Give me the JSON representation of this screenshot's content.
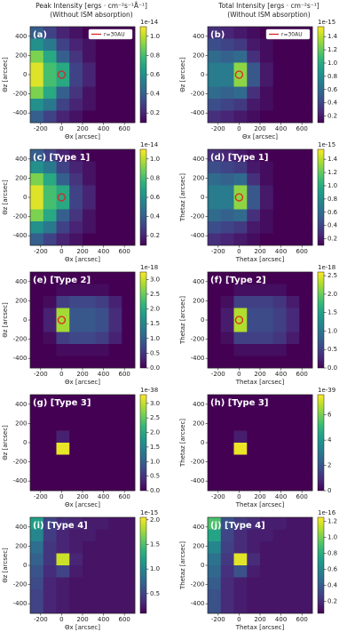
{
  "chart_data": [
    {
      "type": "heatmap",
      "title": "Peak Intensity [ergs · cm⁻²s⁻¹Å⁻¹]",
      "subtitle": "(Without ISM absorption)",
      "panel_label": "(a)",
      "legend": "r=30AU",
      "marker": {
        "x": 0,
        "y": 0,
        "color": "#d62728"
      },
      "xlabel": "Θx [arcsec]",
      "ylabel": "Θz [arcsec]",
      "xlim": [
        -300,
        700
      ],
      "ylim": [
        -500,
        500
      ],
      "xticks": [
        -200,
        0,
        200,
        400,
        600
      ],
      "yticks": [
        -400,
        -200,
        0,
        200,
        400
      ],
      "colormap": "viridis",
      "clim": [
        0.1,
        1.1
      ],
      "cticks": [
        0.2,
        0.4,
        0.6,
        0.8,
        {
          "value": 1,
          "label": "1.0"
        }
      ],
      "cbar_exponent": "1e-14",
      "z": [
        [
          0.4,
          0.3,
          0.2,
          0.15,
          0.1,
          0.1,
          0.1,
          0.1
        ],
        [
          0.6,
          0.5,
          0.3,
          0.2,
          0.15,
          0.1,
          0.1,
          0.1
        ],
        [
          0.9,
          0.7,
          0.4,
          0.25,
          0.15,
          0.1,
          0.1,
          0.1
        ],
        [
          1.05,
          0.8,
          0.7,
          0.3,
          0.2,
          0.1,
          0.1,
          0.1
        ],
        [
          1.05,
          0.8,
          0.7,
          0.3,
          0.2,
          0.1,
          0.1,
          0.1
        ],
        [
          0.9,
          0.7,
          0.4,
          0.25,
          0.15,
          0.1,
          0.1,
          0.1
        ],
        [
          0.6,
          0.5,
          0.3,
          0.2,
          0.15,
          0.1,
          0.1,
          0.1
        ],
        [
          0.4,
          0.3,
          0.2,
          0.15,
          0.1,
          0.1,
          0.1,
          0.1
        ]
      ]
    },
    {
      "type": "heatmap",
      "title": "Total Intensity [ergs · cm⁻²s⁻¹]",
      "subtitle": "(Without ISM absorption)",
      "panel_label": "(b)",
      "legend": "r=30AU",
      "marker": {
        "x": 0,
        "y": 0,
        "color": "#d62728"
      },
      "xlabel": "Θx [arcsec]",
      "ylabel": "Θz [arcsec]",
      "xlim": [
        -300,
        700
      ],
      "ylim": [
        -500,
        500
      ],
      "xticks": [
        -200,
        0,
        200,
        400,
        600
      ],
      "yticks": [
        -400,
        -200,
        0,
        200,
        400
      ],
      "colormap": "viridis",
      "clim": [
        0.1,
        1.55
      ],
      "cticks": [
        0.2,
        0.4,
        0.6,
        0.8,
        {
          "value": 1,
          "label": "1.0"
        },
        1.2,
        1.4
      ],
      "cbar_exponent": "1e-15",
      "z": [
        [
          0.3,
          0.25,
          0.2,
          0.15,
          0.1,
          0.1,
          0.1,
          0.1
        ],
        [
          0.45,
          0.4,
          0.35,
          0.2,
          0.15,
          0.1,
          0.1,
          0.1
        ],
        [
          0.6,
          0.55,
          0.6,
          0.3,
          0.15,
          0.1,
          0.1,
          0.1
        ],
        [
          0.7,
          0.7,
          1.3,
          0.5,
          0.2,
          0.1,
          0.1,
          0.1
        ],
        [
          0.7,
          0.7,
          1.3,
          0.5,
          0.2,
          0.1,
          0.1,
          0.1
        ],
        [
          0.6,
          0.55,
          0.6,
          0.3,
          0.15,
          0.1,
          0.1,
          0.1
        ],
        [
          0.45,
          0.4,
          0.35,
          0.2,
          0.15,
          0.1,
          0.1,
          0.1
        ],
        [
          0.3,
          0.25,
          0.2,
          0.15,
          0.1,
          0.1,
          0.1,
          0.1
        ]
      ]
    },
    {
      "type": "heatmap",
      "panel_label": "(c) [Type 1]",
      "marker": {
        "x": 0,
        "y": 0,
        "color": "#d62728"
      },
      "xlabel": "Θx [arcsec]",
      "ylabel": "Θz [arcsec]",
      "xlim": [
        -300,
        700
      ],
      "ylim": [
        -500,
        500
      ],
      "xticks": [
        -200,
        0,
        200,
        400,
        600
      ],
      "yticks": [
        -400,
        -200,
        0,
        200,
        400
      ],
      "colormap": "viridis",
      "clim": [
        0.1,
        1.1
      ],
      "cticks": [
        0.2,
        0.4,
        0.6,
        0.8,
        {
          "value": 1,
          "label": "1.0"
        }
      ],
      "cbar_exponent": "1e-14",
      "z": [
        [
          0.4,
          0.3,
          0.2,
          0.15,
          0.1,
          0.1,
          0.1,
          0.1
        ],
        [
          0.6,
          0.5,
          0.3,
          0.2,
          0.15,
          0.1,
          0.1,
          0.1
        ],
        [
          0.9,
          0.7,
          0.4,
          0.25,
          0.15,
          0.1,
          0.1,
          0.1
        ],
        [
          1.05,
          0.8,
          0.7,
          0.3,
          0.2,
          0.1,
          0.1,
          0.1
        ],
        [
          1.05,
          0.8,
          0.7,
          0.3,
          0.2,
          0.1,
          0.1,
          0.1
        ],
        [
          0.9,
          0.7,
          0.4,
          0.25,
          0.15,
          0.1,
          0.1,
          0.1
        ],
        [
          0.6,
          0.5,
          0.3,
          0.2,
          0.15,
          0.1,
          0.1,
          0.1
        ],
        [
          0.4,
          0.3,
          0.2,
          0.15,
          0.1,
          0.1,
          0.1,
          0.1
        ]
      ]
    },
    {
      "type": "heatmap",
      "panel_label": "(d) [Type 1]",
      "marker": {
        "x": 0,
        "y": 0,
        "color": "#d62728"
      },
      "xlabel": "Thetax [arcsec]",
      "ylabel": "Thetaz [arcsec]",
      "xlim": [
        -300,
        700
      ],
      "ylim": [
        -500,
        500
      ],
      "xticks": [
        -200,
        0,
        200,
        400,
        600
      ],
      "yticks": [
        -400,
        -200,
        0,
        200,
        400
      ],
      "colormap": "viridis",
      "clim": [
        0.1,
        1.55
      ],
      "cticks": [
        0.2,
        0.4,
        0.6,
        0.8,
        {
          "value": 1,
          "label": "1.0"
        },
        1.2,
        1.4
      ],
      "cbar_exponent": "1e-15",
      "z": [
        [
          0.3,
          0.25,
          0.2,
          0.15,
          0.1,
          0.1,
          0.1,
          0.1
        ],
        [
          0.45,
          0.4,
          0.35,
          0.2,
          0.15,
          0.1,
          0.1,
          0.1
        ],
        [
          0.6,
          0.55,
          0.6,
          0.3,
          0.15,
          0.1,
          0.1,
          0.1
        ],
        [
          0.7,
          0.7,
          1.3,
          0.5,
          0.2,
          0.1,
          0.1,
          0.1
        ],
        [
          0.7,
          0.7,
          1.3,
          0.5,
          0.2,
          0.1,
          0.1,
          0.1
        ],
        [
          0.6,
          0.55,
          0.6,
          0.3,
          0.15,
          0.1,
          0.1,
          0.1
        ],
        [
          0.45,
          0.4,
          0.35,
          0.2,
          0.15,
          0.1,
          0.1,
          0.1
        ],
        [
          0.3,
          0.25,
          0.2,
          0.15,
          0.1,
          0.1,
          0.1,
          0.1
        ]
      ]
    },
    {
      "type": "heatmap",
      "panel_label": "(e) [Type 2]",
      "marker": {
        "x": 0,
        "y": 0,
        "color": "#d62728"
      },
      "xlabel": "Θx [arcsec]",
      "ylabel": "Θz [arcsec]",
      "xlim": [
        -300,
        700
      ],
      "ylim": [
        -500,
        500
      ],
      "xticks": [
        -200,
        0,
        200,
        400,
        600
      ],
      "yticks": [
        -400,
        -200,
        0,
        200,
        400
      ],
      "colormap": "viridis",
      "clim": [
        0,
        3.25
      ],
      "cticks": [
        {
          "value": 0,
          "label": "0.0"
        },
        0.5,
        {
          "value": 1,
          "label": "1.0"
        },
        1.5,
        {
          "value": 2,
          "label": "2.0"
        },
        2.5,
        {
          "value": 3,
          "label": "3.0"
        }
      ],
      "cbar_exponent": "1e-18",
      "z": [
        [
          0,
          0,
          0,
          0,
          0,
          0,
          0,
          0
        ],
        [
          0,
          0,
          0.1,
          0.1,
          0.1,
          0.1,
          0,
          0
        ],
        [
          0,
          0.1,
          0.6,
          0.7,
          0.7,
          0.6,
          0.3,
          0
        ],
        [
          0,
          0.3,
          2.8,
          0.9,
          0.9,
          0.8,
          0.4,
          0
        ],
        [
          0,
          0.3,
          2.8,
          0.9,
          0.9,
          0.8,
          0.4,
          0
        ],
        [
          0,
          0.1,
          0.6,
          0.7,
          0.7,
          0.6,
          0.3,
          0
        ],
        [
          0,
          0,
          0.1,
          0.1,
          0.1,
          0.1,
          0,
          0
        ],
        [
          0,
          0,
          0,
          0,
          0,
          0,
          0,
          0
        ]
      ]
    },
    {
      "type": "heatmap",
      "panel_label": "(f) [Type 2]",
      "marker": {
        "x": 0,
        "y": 0,
        "color": "#d62728"
      },
      "xlabel": "Thetax [arcsec]",
      "ylabel": "Thetaz [arcsec]",
      "xlim": [
        -300,
        700
      ],
      "ylim": [
        -500,
        500
      ],
      "xticks": [
        -200,
        0,
        200,
        400,
        600
      ],
      "yticks": [
        -400,
        -200,
        0,
        200,
        400
      ],
      "colormap": "viridis",
      "clim": [
        0,
        2.6
      ],
      "cticks": [
        {
          "value": 0,
          "label": "0.0"
        },
        0.5,
        {
          "value": 1,
          "label": "1.0"
        },
        1.5,
        {
          "value": 2,
          "label": "2.0"
        },
        2.5
      ],
      "cbar_exponent": "1e-18",
      "z": [
        [
          0,
          0,
          0,
          0,
          0,
          0,
          0,
          0
        ],
        [
          0,
          0,
          0.1,
          0.1,
          0.1,
          0.1,
          0,
          0
        ],
        [
          0,
          0.1,
          0.5,
          0.5,
          0.5,
          0.4,
          0.2,
          0
        ],
        [
          0,
          0.2,
          2.3,
          0.6,
          0.6,
          0.5,
          0.3,
          0
        ],
        [
          0,
          0.2,
          2.3,
          0.6,
          0.6,
          0.5,
          0.3,
          0
        ],
        [
          0,
          0.1,
          0.5,
          0.5,
          0.5,
          0.4,
          0.2,
          0
        ],
        [
          0,
          0,
          0.1,
          0.1,
          0.1,
          0.1,
          0,
          0
        ],
        [
          0,
          0,
          0,
          0,
          0,
          0,
          0,
          0
        ]
      ]
    },
    {
      "type": "heatmap",
      "panel_label": "(g) [Type 3]",
      "xlabel": "Θx [arcsec]",
      "ylabel": "Θz [arcsec]",
      "xlim": [
        -300,
        700
      ],
      "ylim": [
        -500,
        500
      ],
      "xticks": [
        -200,
        0,
        200,
        400,
        600
      ],
      "yticks": [
        -400,
        -200,
        0,
        200,
        400
      ],
      "colormap": "viridis",
      "clim": [
        0,
        3.3
      ],
      "cticks": [
        {
          "value": 0,
          "label": "0.0"
        },
        0.5,
        {
          "value": 1,
          "label": "1.0"
        },
        1.5,
        {
          "value": 2,
          "label": "2.0"
        },
        2.5,
        {
          "value": 3,
          "label": "3.0"
        }
      ],
      "cbar_exponent": "1e-38",
      "z": [
        [
          0,
          0,
          0,
          0,
          0,
          0,
          0,
          0
        ],
        [
          0,
          0,
          0,
          0,
          0,
          0,
          0,
          0
        ],
        [
          0,
          0,
          0,
          0,
          0,
          0,
          0,
          0
        ],
        [
          0,
          0,
          0.3,
          0,
          0,
          0,
          0,
          0
        ],
        [
          0,
          0,
          3.2,
          0,
          0,
          0,
          0,
          0
        ],
        [
          0,
          0,
          0,
          0,
          0,
          0,
          0,
          0
        ],
        [
          0,
          0,
          0,
          0,
          0,
          0,
          0,
          0
        ],
        [
          0,
          0,
          0,
          0,
          0,
          0,
          0,
          0
        ]
      ]
    },
    {
      "type": "heatmap",
      "panel_label": "(h) [Type 3]",
      "xlabel": "Thetax [arcsec]",
      "ylabel": "Thetaz [arcsec]",
      "xlim": [
        -300,
        700
      ],
      "ylim": [
        -500,
        500
      ],
      "xticks": [
        -200,
        0,
        200,
        400,
        600
      ],
      "yticks": [
        -400,
        -200,
        0,
        200,
        400
      ],
      "colormap": "viridis",
      "clim": [
        0,
        7.6
      ],
      "cticks": [
        0,
        2,
        4,
        6
      ],
      "cbar_exponent": "1e-39",
      "z": [
        [
          0,
          0,
          0,
          0,
          0,
          0,
          0,
          0
        ],
        [
          0,
          0,
          0,
          0,
          0,
          0,
          0,
          0
        ],
        [
          0,
          0,
          0,
          0,
          0,
          0,
          0,
          0
        ],
        [
          0,
          0,
          0.6,
          0,
          0,
          0,
          0,
          0
        ],
        [
          0,
          0,
          7.4,
          0,
          0,
          0,
          0,
          0
        ],
        [
          0,
          0,
          0,
          0,
          0,
          0,
          0,
          0
        ],
        [
          0,
          0,
          0,
          0,
          0,
          0,
          0,
          0
        ],
        [
          0,
          0,
          0,
          0,
          0,
          0,
          0,
          0
        ]
      ]
    },
    {
      "type": "heatmap",
      "panel_label": "(i) [Type 4]",
      "xlabel": "Θx [arcsec]",
      "ylabel": "Θz [arcsec]",
      "xlim": [
        -300,
        700
      ],
      "ylim": [
        -500,
        500
      ],
      "xticks": [
        -200,
        0,
        200,
        400,
        600
      ],
      "yticks": [
        -400,
        -200,
        0,
        200,
        400
      ],
      "colormap": "viridis",
      "clim": [
        0.1,
        2.05
      ],
      "cticks": [
        0.5,
        {
          "value": 1,
          "label": "1.0"
        },
        1.5,
        {
          "value": 2,
          "label": "2.0"
        }
      ],
      "cbar_exponent": "1e-15",
      "z": [
        [
          1.2,
          0.5,
          0.35,
          0.3,
          0.25,
          0.25,
          0.2,
          0.2
        ],
        [
          1.0,
          0.45,
          0.3,
          0.25,
          0.25,
          0.2,
          0.2,
          0.2
        ],
        [
          0.8,
          0.4,
          0.3,
          0.25,
          0.2,
          0.2,
          0.2,
          0.2
        ],
        [
          0.7,
          0.4,
          1.9,
          0.3,
          0.2,
          0.2,
          0.2,
          0.2
        ],
        [
          0.6,
          0.35,
          0.5,
          0.25,
          0.2,
          0.2,
          0.2,
          0.2
        ],
        [
          0.55,
          0.3,
          0.25,
          0.2,
          0.2,
          0.2,
          0.2,
          0.2
        ],
        [
          0.5,
          0.3,
          0.25,
          0.2,
          0.2,
          0.2,
          0.2,
          0.2
        ],
        [
          0.5,
          0.3,
          0.25,
          0.2,
          0.2,
          0.2,
          0.2,
          0.2
        ]
      ]
    },
    {
      "type": "heatmap",
      "panel_label": "(j) [Type 4]",
      "xlabel": "Thetax [arcsec]",
      "ylabel": "Thetaz [arcsec]",
      "xlim": [
        -300,
        700
      ],
      "ylim": [
        -500,
        500
      ],
      "xticks": [
        -200,
        0,
        200,
        400,
        600
      ],
      "yticks": [
        -400,
        -200,
        0,
        200,
        400
      ],
      "colormap": "viridis",
      "clim": [
        0.05,
        1.25
      ],
      "cticks": [
        0.2,
        0.4,
        0.6,
        0.8,
        {
          "value": 1,
          "label": "1.0"
        },
        1.2
      ],
      "cbar_exponent": "1e-16",
      "z": [
        [
          0.9,
          0.35,
          0.25,
          0.2,
          0.15,
          0.15,
          0.12,
          0.12
        ],
        [
          0.75,
          0.3,
          0.2,
          0.15,
          0.15,
          0.12,
          0.12,
          0.12
        ],
        [
          0.6,
          0.28,
          0.2,
          0.15,
          0.12,
          0.12,
          0.12,
          0.12
        ],
        [
          0.5,
          0.25,
          1.2,
          0.2,
          0.12,
          0.12,
          0.12,
          0.12
        ],
        [
          0.45,
          0.22,
          0.35,
          0.15,
          0.12,
          0.12,
          0.12,
          0.12
        ],
        [
          0.4,
          0.2,
          0.15,
          0.12,
          0.12,
          0.12,
          0.12,
          0.12
        ],
        [
          0.35,
          0.2,
          0.15,
          0.12,
          0.12,
          0.12,
          0.12,
          0.12
        ],
        [
          0.35,
          0.2,
          0.15,
          0.12,
          0.12,
          0.12,
          0.12,
          0.12
        ]
      ]
    }
  ]
}
